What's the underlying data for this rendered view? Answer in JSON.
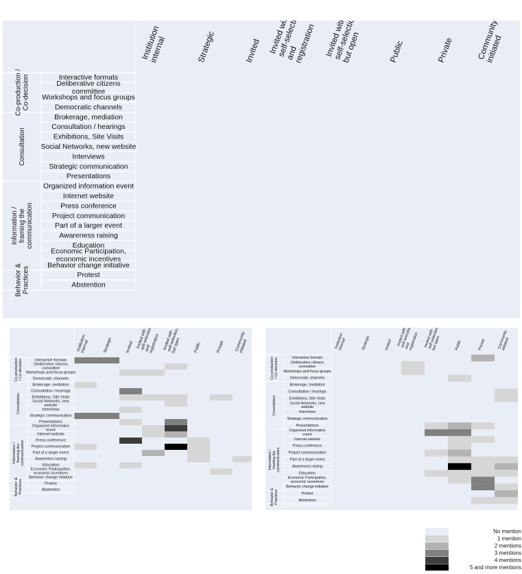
{
  "columns": [
    "Institution internal",
    "Strategic",
    "Invited",
    "Invited with self-selection and registration",
    "Invited with self-selection, but open",
    "Public",
    "Private",
    "Community initiated"
  ],
  "groups": [
    {
      "label": "Co-production / Co-decision",
      "rows": [
        0,
        3
      ]
    },
    {
      "label": "Consultation",
      "rows": [
        4,
        10
      ]
    },
    {
      "label": "Information / framing the communication",
      "rows": [
        11,
        19
      ]
    },
    {
      "label": "Behavior & Practices",
      "rows": [
        20,
        21
      ]
    }
  ],
  "rows": [
    "Interactive formats",
    "Deliberative citizens committee",
    "Workshops and focus groups",
    "Democratic channels",
    "Brokerage, mediation",
    "Consultation / hearings",
    "Exhibitions, Site Visits",
    "Social Networks, new website",
    "Interviews",
    "Strategic communication",
    "Presentations",
    "Organized information event",
    "Internet website",
    "Press conference",
    "Project communication",
    "Part of a larger event",
    "Awareness raising",
    "Education",
    "Economic Participation, economic incentives",
    "Behavior change initiative",
    "Protest",
    "Abstention"
  ],
  "legend": {
    "items": [
      {
        "label": "No mention",
        "color": "#e9edf6"
      },
      {
        "label": "1 mention",
        "color": "#d6d6d6"
      },
      {
        "label": "2 mentions",
        "color": "#b3b3b3"
      },
      {
        "label": "3 mentions",
        "color": "#808080"
      },
      {
        "label": "4 mentions",
        "color": "#3c3c3c"
      },
      {
        "label": "5 and more mentions",
        "color": "#000000"
      }
    ]
  },
  "panels": [
    {
      "name": "template",
      "cells": []
    },
    {
      "name": "left-matrix",
      "cells": [
        {
          "row": 0,
          "col": 0,
          "level": 3
        },
        {
          "row": 0,
          "col": 1,
          "level": 3
        },
        {
          "row": 1,
          "col": 4,
          "level": 1
        },
        {
          "row": 2,
          "col": 3,
          "level": 1
        },
        {
          "row": 2,
          "col": 2,
          "level": 1
        },
        {
          "row": 4,
          "col": 0,
          "level": 1
        },
        {
          "row": 5,
          "col": 2,
          "level": 3
        },
        {
          "row": 6,
          "col": 2,
          "level": 1
        },
        {
          "row": 6,
          "col": 3,
          "level": 1
        },
        {
          "row": 6,
          "col": 4,
          "level": 1
        },
        {
          "row": 6,
          "col": 6,
          "level": 1
        },
        {
          "row": 7,
          "col": 4,
          "level": 1
        },
        {
          "row": 8,
          "col": 2,
          "level": 1
        },
        {
          "row": 9,
          "col": 0,
          "level": 3
        },
        {
          "row": 9,
          "col": 1,
          "level": 3
        },
        {
          "row": 10,
          "col": 2,
          "level": 1
        },
        {
          "row": 10,
          "col": 4,
          "level": 3
        },
        {
          "row": 11,
          "col": 4,
          "level": 4
        },
        {
          "row": 11,
          "col": 3,
          "level": 1
        },
        {
          "row": 12,
          "col": 3,
          "level": 1
        },
        {
          "row": 12,
          "col": 4,
          "level": 2
        },
        {
          "row": 13,
          "col": 2,
          "level": 4
        },
        {
          "row": 13,
          "col": 5,
          "level": 1
        },
        {
          "row": 14,
          "col": 0,
          "level": 1
        },
        {
          "row": 14,
          "col": 4,
          "level": 5
        },
        {
          "row": 14,
          "col": 5,
          "level": 1
        },
        {
          "row": 15,
          "col": 3,
          "level": 2
        },
        {
          "row": 15,
          "col": 5,
          "level": 1
        },
        {
          "row": 16,
          "col": 5,
          "level": 1
        },
        {
          "row": 16,
          "col": 7,
          "level": 1
        },
        {
          "row": 17,
          "col": 0,
          "level": 1
        },
        {
          "row": 17,
          "col": 2,
          "level": 1
        },
        {
          "row": 18,
          "col": 6,
          "level": 1
        }
      ]
    },
    {
      "name": "right-matrix",
      "cells": [
        {
          "row": 0,
          "col": 6,
          "level": 2
        },
        {
          "row": 1,
          "col": 3,
          "level": 1
        },
        {
          "row": 2,
          "col": 3,
          "level": 1
        },
        {
          "row": 3,
          "col": 5,
          "level": 1
        },
        {
          "row": 5,
          "col": 7,
          "level": 1
        },
        {
          "row": 6,
          "col": 7,
          "level": 1
        },
        {
          "row": 10,
          "col": 4,
          "level": 1
        },
        {
          "row": 10,
          "col": 5,
          "level": 2
        },
        {
          "row": 10,
          "col": 6,
          "level": 1
        },
        {
          "row": 11,
          "col": 4,
          "level": 3
        },
        {
          "row": 11,
          "col": 5,
          "level": 3
        },
        {
          "row": 12,
          "col": 5,
          "level": 1
        },
        {
          "row": 12,
          "col": 6,
          "level": 1
        },
        {
          "row": 13,
          "col": 5,
          "level": 1
        },
        {
          "row": 14,
          "col": 4,
          "level": 1
        },
        {
          "row": 14,
          "col": 5,
          "level": 2
        },
        {
          "row": 15,
          "col": 5,
          "level": 1
        },
        {
          "row": 15,
          "col": 6,
          "level": 1
        },
        {
          "row": 15,
          "col": 7,
          "level": 1
        },
        {
          "row": 16,
          "col": 5,
          "level": 5
        },
        {
          "row": 16,
          "col": 6,
          "level": 1
        },
        {
          "row": 16,
          "col": 7,
          "level": 2
        },
        {
          "row": 17,
          "col": 4,
          "level": 1
        },
        {
          "row": 17,
          "col": 5,
          "level": 1
        },
        {
          "row": 17,
          "col": 6,
          "level": 1
        },
        {
          "row": 17,
          "col": 7,
          "level": 1
        },
        {
          "row": 18,
          "col": 5,
          "level": 1
        },
        {
          "row": 18,
          "col": 6,
          "level": 3
        },
        {
          "row": 19,
          "col": 6,
          "level": 3
        },
        {
          "row": 19,
          "col": 7,
          "level": 1
        },
        {
          "row": 20,
          "col": 7,
          "level": 2
        },
        {
          "row": 21,
          "col": 6,
          "level": 1
        },
        {
          "row": 21,
          "col": 7,
          "level": 1
        }
      ]
    }
  ]
}
